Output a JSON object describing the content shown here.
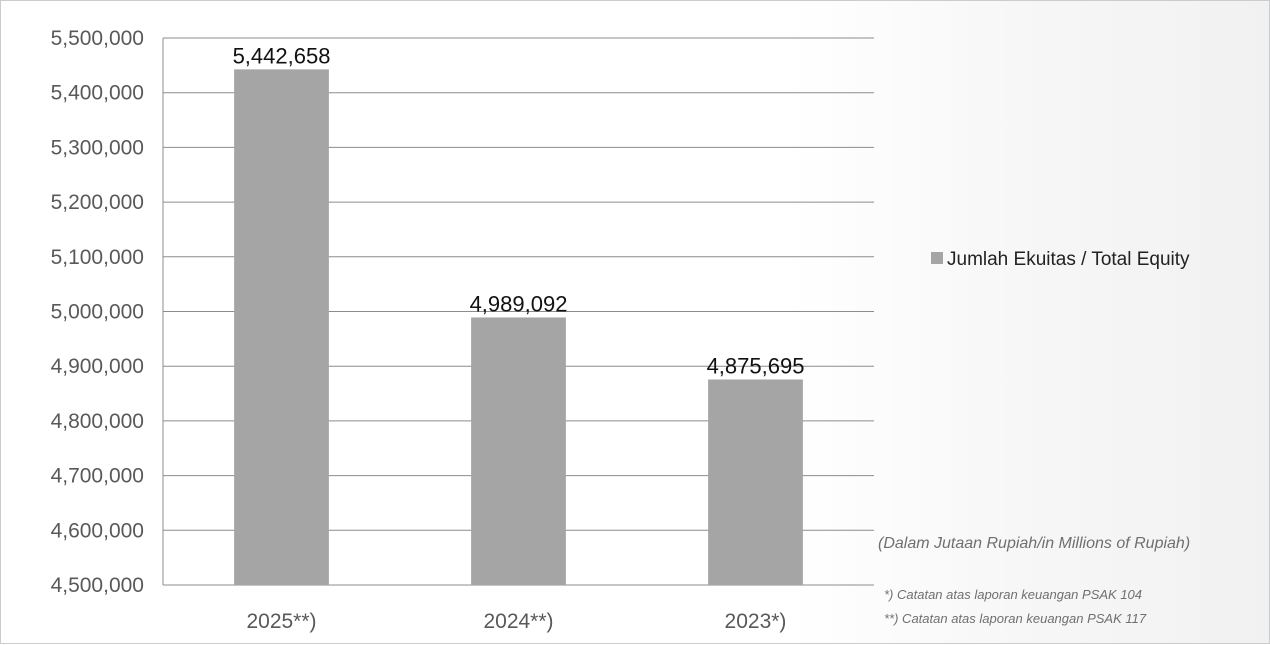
{
  "chart_data": {
    "type": "bar",
    "categories": [
      "2025**)",
      "2024**)",
      "2023*)"
    ],
    "series": [
      {
        "name": "Jumlah Ekuitas / Total Equity",
        "values": [
          5442658,
          4989092,
          4875695
        ],
        "color": "#a5a5a5"
      }
    ],
    "data_labels": [
      "5,442,658",
      "4,989,092",
      "4,875,695"
    ],
    "ylim": [
      4500000,
      5500000
    ],
    "yticks": [
      4500000,
      4600000,
      4700000,
      4800000,
      4900000,
      5000000,
      5100000,
      5200000,
      5300000,
      5400000,
      5500000
    ],
    "ytick_labels": [
      "4,500,000",
      "4,600,000",
      "4,700,000",
      "4,800,000",
      "4,900,000",
      "5,000,000",
      "5,100,000",
      "5,200,000",
      "5,300,000",
      "5,400,000",
      "5,500,000"
    ],
    "grid": true,
    "legend_position": "right",
    "unit_note": "(Dalam Jutaan Rupiah/in Millions of Rupiah)",
    "footnotes": [
      "*) Catatan atas laporan keuangan PSAK 104",
      "**) Catatan atas laporan keuangan PSAK 117"
    ]
  }
}
